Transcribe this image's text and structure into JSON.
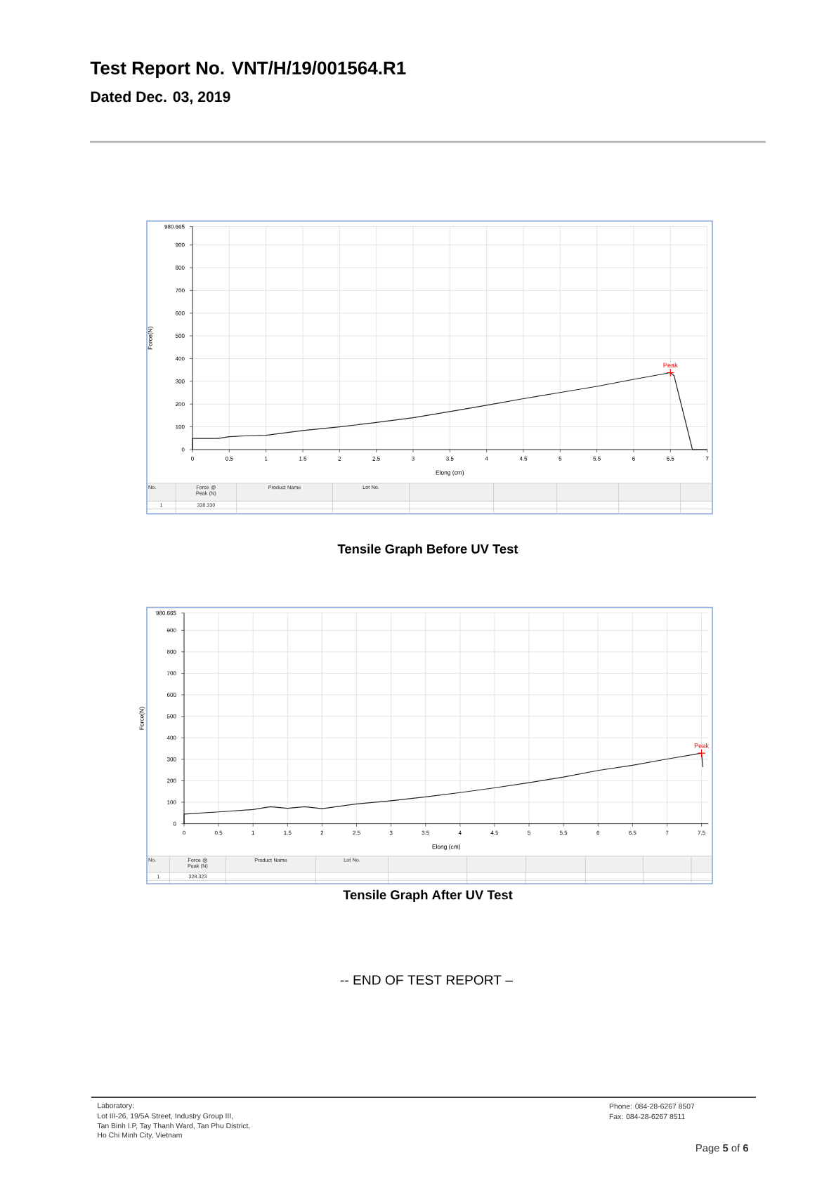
{
  "chart_data": [
    {
      "type": "line",
      "title": "Test Report No. VNT/H/19/001564.R1",
      "subtitle": "Dated Dec. 03, 2019",
      "xlabel": "Elong (cm)",
      "ylabel": "Force(N)",
      "series": [
        {
          "color": "#222222",
          "x": [
            0,
            0,
            0.35,
            0.5,
            0.75,
            1,
            1.5,
            2,
            2.5,
            3,
            3.5,
            4,
            4.5,
            5,
            5.5,
            6,
            6.5,
            6.55,
            6.8,
            7
          ],
          "values": [
            0,
            49,
            49,
            57,
            61,
            63,
            84,
            100,
            119,
            140,
            167,
            195,
            224,
            251,
            278,
            309,
            338.33,
            325,
            0,
            0
          ]
        },
        {
          "type": "scatter",
          "name": "Peak",
          "color": "#ff0000",
          "marker": "cross",
          "x": [
            6.5
          ],
          "values": [
            338.33
          ]
        }
      ],
      "xlim": [
        0,
        7
      ],
      "xticks": [
        0,
        0.5,
        1,
        1.5,
        2,
        2.5,
        3,
        3.5,
        4,
        4.5,
        5,
        5.5,
        6,
        6.5,
        7
      ],
      "ylim": [
        0,
        980.665
      ],
      "yticks": [
        0,
        100,
        200,
        300,
        400,
        500,
        600,
        700,
        800,
        900,
        980.665
      ],
      "grid": true,
      "marker": "none",
      "line_style": "solid",
      "annotations": [
        "No.",
        "Force @ Peak (N)",
        "Product Name",
        "Lot No.",
        "1",
        "338.330",
        "Tensile Graph Before UV Test"
      ]
    },
    {
      "type": "line",
      "xlabel": "Elong (cm)",
      "ylabel": "Force(N)",
      "series": [
        {
          "color": "#222222",
          "x": [
            0,
            0,
            0.5,
            1,
            1.25,
            1.5,
            1.75,
            2,
            2.5,
            3,
            3.5,
            4,
            4.5,
            5,
            5.5,
            6,
            6.5,
            7,
            7.5,
            7.52
          ],
          "values": [
            0,
            45,
            55,
            66,
            79,
            72,
            79,
            70,
            92,
            107,
            125,
            145,
            167,
            191,
            217,
            248,
            272,
            301,
            328.323,
            265
          ]
        },
        {
          "type": "scatter",
          "name": "Peak",
          "color": "#ff0000",
          "marker": "cross",
          "x": [
            7.5
          ],
          "values": [
            328.323
          ]
        }
      ],
      "xlim": [
        0,
        7.6
      ],
      "xticks": [
        0,
        0.5,
        1,
        1.5,
        2,
        2.5,
        3,
        3.5,
        4,
        4.5,
        5,
        5.5,
        6,
        6.5,
        7,
        7.5
      ],
      "ylim": [
        0,
        980.665
      ],
      "yticks": [
        0,
        100,
        200,
        300,
        400,
        500,
        600,
        700,
        800,
        900,
        980.665
      ],
      "grid": true,
      "marker": "none",
      "line_style": "solid",
      "annotations": [
        "No.",
        "Force @ Peak (N)",
        "Product Name",
        "Lot No.",
        "1",
        "328.323",
        "Tensile Graph After UV Test",
        "-- END OF TEST REPORT –",
        "Laboratory:",
        "Lot III-26, 19/5A Street, Industry Group III,",
        "Tan Binh I.P, Tay Thanh Ward, Tan Phu District,",
        "Ho Chi Minh City, Vietnam",
        "Phone: 084-28-6267 8507",
        "Fax: 084-28-6267 8511",
        "Page **5** of **6**"
      ]
    }
  ]
}
